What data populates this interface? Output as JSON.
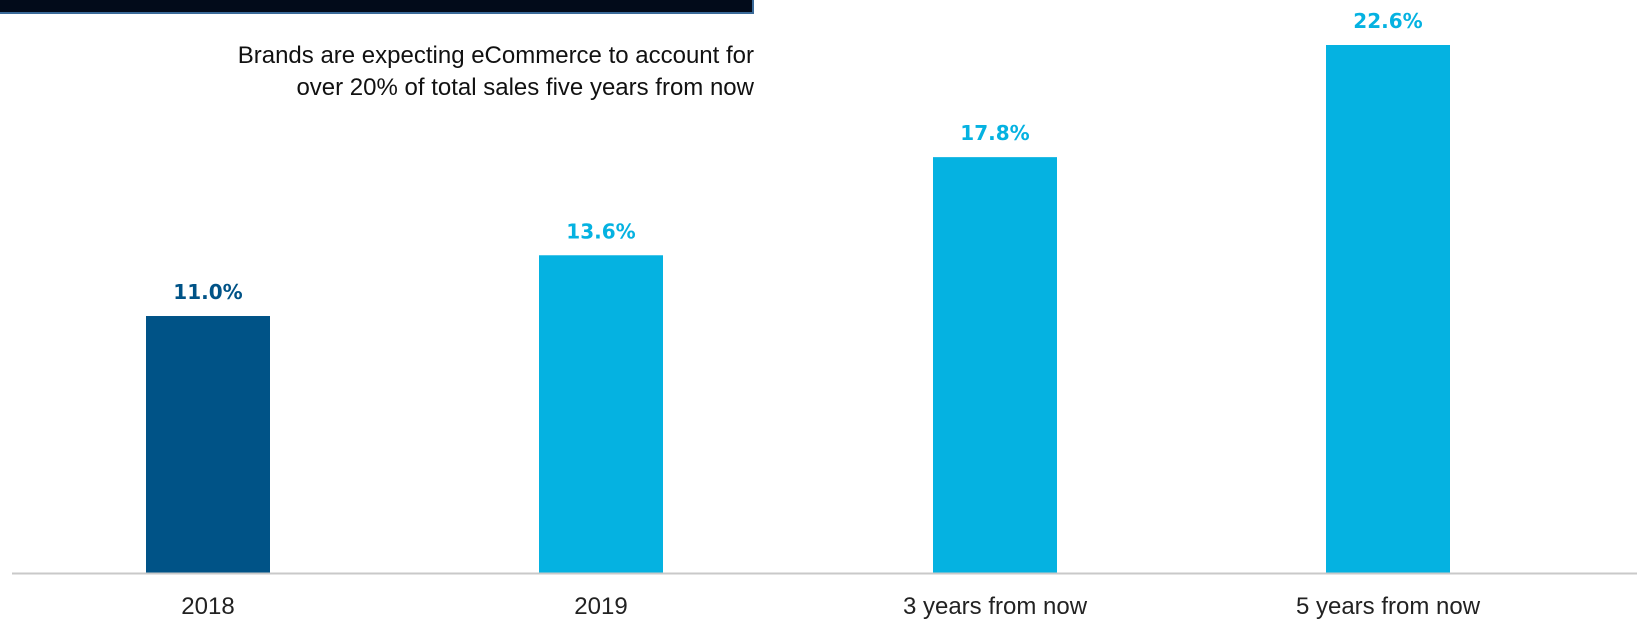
{
  "callout": {
    "line1": "Brands are expecting eCommerce to account for",
    "line2": "over 20% of total sales five years from now"
  },
  "colors": {
    "dark_bar": "#005387",
    "light_bar": "#05b2e1",
    "axis": "#c9c9c9",
    "top_bar": "#020b1a"
  },
  "chart_data": {
    "type": "bar",
    "categories": [
      "2018",
      "2019",
      "3 years from now",
      "5 years from now"
    ],
    "values": [
      11.0,
      13.6,
      17.8,
      22.6
    ],
    "value_labels": [
      "11.0%",
      "13.6%",
      "17.8%",
      "22.6%"
    ],
    "bar_colors": [
      "#005387",
      "#05b2e1",
      "#05b2e1",
      "#05b2e1"
    ],
    "title": "",
    "xlabel": "",
    "ylabel": "",
    "ylim": [
      0,
      22.6
    ],
    "grid": false,
    "legend": "none"
  }
}
